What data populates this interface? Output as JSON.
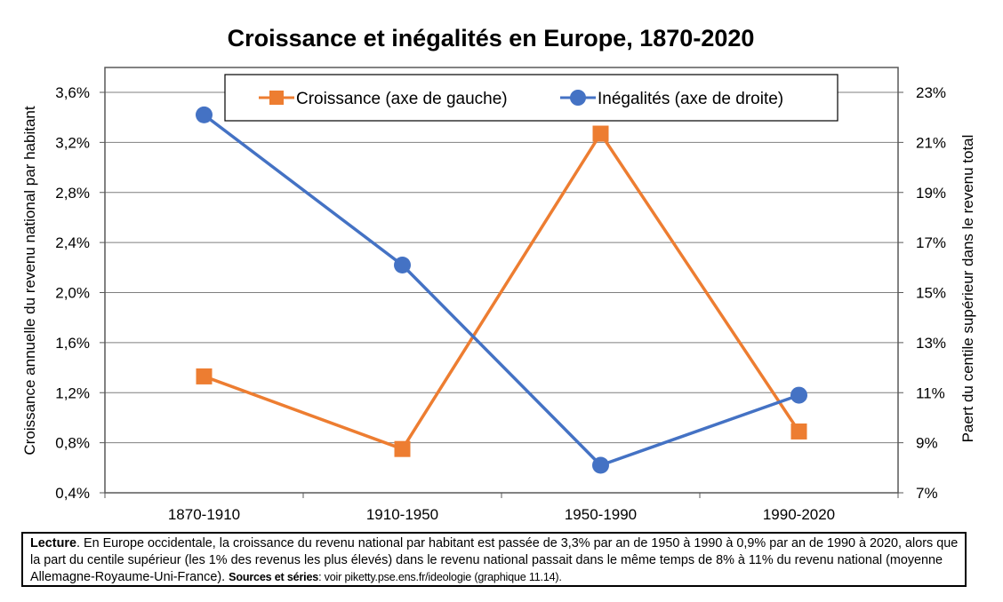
{
  "title": "Croissance et inégalités en Europe, 1870-2020",
  "chart_data": {
    "type": "line",
    "title": "Croissance et inégalités en Europe, 1870-2020",
    "categories": [
      "1870-1910",
      "1910-1950",
      "1950-1990",
      "1990-2020"
    ],
    "ylabel_left": "Croissance annuelle du revenu national par habitant",
    "ylabel_right": "Paert du centile supérieur dans le revenu total",
    "ylim_left": [
      0.4,
      3.6
    ],
    "ylim_right": [
      7,
      23
    ],
    "yticks_left": [
      "0,4%",
      "0,8%",
      "1,2%",
      "1,6%",
      "2,0%",
      "2,4%",
      "2,8%",
      "3,2%",
      "3,6%"
    ],
    "yticks_right": [
      "7%",
      "9%",
      "11%",
      "13%",
      "15%",
      "17%",
      "19%",
      "21%",
      "23%"
    ],
    "legend_position": "top-center",
    "grid": "horizontal",
    "series": [
      {
        "name": "Croissance (axe de gauche)",
        "axis": "left",
        "marker": "square",
        "color": "#ED7D31",
        "values": [
          1.33,
          0.75,
          3.27,
          0.89
        ]
      },
      {
        "name": "Inégalités (axe de droite)",
        "axis": "right",
        "marker": "circle",
        "color": "#4472C4",
        "values": [
          22.1,
          16.1,
          8.1,
          10.9
        ]
      }
    ]
  },
  "lecture": {
    "label": "Lecture",
    "text": ". En Europe occidentale, la croissance du revenu national par habitant est passée de 3,3% par an de 1950 à 1990 à 0,9% par an de 1990 à 2020, alors que la part du centile supérieur (les 1% des revenus les plus élevés) dans le revenu national passait dans le même temps de 8% à 11% du revenu national (moyenne Allemagne-Royaume-Uni-France). ",
    "sources_label": "Sources et séries",
    "sources_text": ": voir piketty.pse.ens.fr/ideologie (graphique 11.14)."
  }
}
